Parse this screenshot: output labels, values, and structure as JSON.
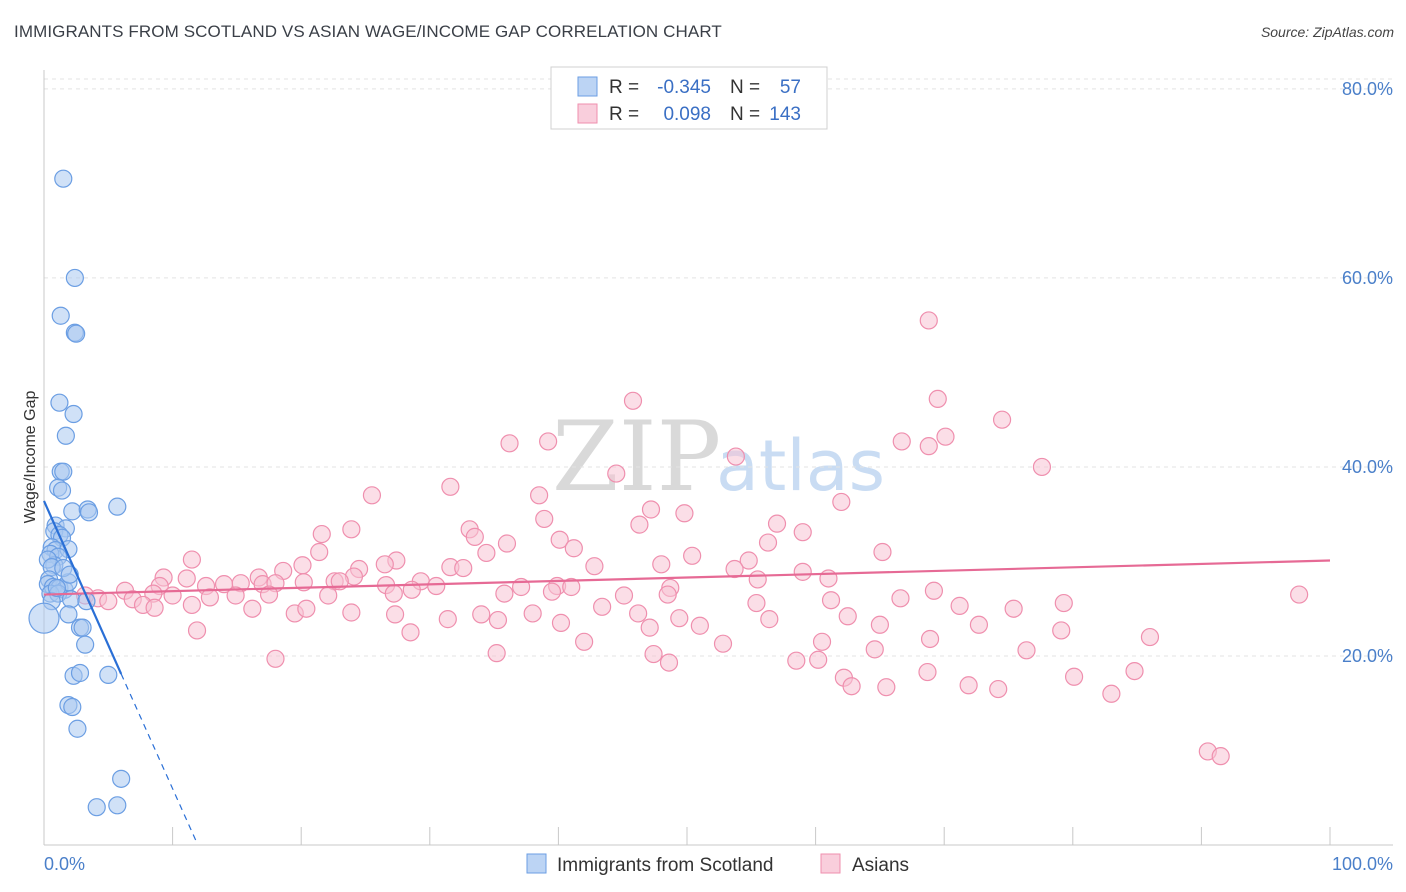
{
  "title": "IMMIGRANTS FROM SCOTLAND VS ASIAN WAGE/INCOME GAP CORRELATION CHART",
  "source": "Source: ZipAtlas.com",
  "watermark": {
    "zip": "ZIP",
    "atlas": "atlas"
  },
  "colors": {
    "blue": "#6b9ee3",
    "blue_fill": "#a9c8f0",
    "blue_line": "#2a6fd6",
    "pink": "#ef8fae",
    "pink_fill": "#f7c3d4",
    "pink_line": "#e66a95",
    "axis_text": "#4a7fc9"
  },
  "legend": {
    "row1": {
      "r_label": "R =",
      "r_value": "-0.345",
      "n_label": "N =",
      "n_value": "57"
    },
    "row2": {
      "r_label": "R =",
      "r_value": "0.098",
      "n_label": "N =",
      "n_value": "143"
    }
  },
  "bottom_legend": {
    "series1": "Immigrants from Scotland",
    "series2": "Asians"
  },
  "chart_data": {
    "type": "scatter",
    "title": "IMMIGRANTS FROM SCOTLAND VS ASIAN WAGE/INCOME GAP CORRELATION CHART",
    "xlabel": "",
    "ylabel": "Wage/Income Gap",
    "xlim": [
      0,
      100
    ],
    "ylim": [
      0,
      82
    ],
    "x_tick_labels": [
      "0.0%",
      "100.0%"
    ],
    "y_ticks": [
      20,
      40,
      60,
      80
    ],
    "y_tick_labels": [
      "20.0%",
      "40.0%",
      "60.0%",
      "80.0%"
    ],
    "grid": true,
    "series": [
      {
        "name": "Immigrants from Scotland",
        "R": -0.345,
        "N": 57,
        "trend": {
          "x0": 0,
          "y0": 36.4,
          "x1": 6.0,
          "y1": 18.1,
          "dashed_to_x": 11.8,
          "dashed_to_y": 0.5
        },
        "points": [
          [
            1.5,
            70.5
          ],
          [
            2.4,
            60
          ],
          [
            1.3,
            56
          ],
          [
            2.4,
            54.2
          ],
          [
            2.5,
            54.1
          ],
          [
            1.2,
            46.8
          ],
          [
            2.3,
            45.6
          ],
          [
            1.7,
            43.3
          ],
          [
            1.3,
            39.5
          ],
          [
            1.5,
            39.5
          ],
          [
            1.1,
            37.8
          ],
          [
            1.4,
            37.5
          ],
          [
            2.2,
            35.3
          ],
          [
            3.4,
            35.5
          ],
          [
            3.5,
            35.2
          ],
          [
            5.7,
            35.8
          ],
          [
            0.9,
            33.8
          ],
          [
            1.7,
            33.5
          ],
          [
            0.8,
            33.2
          ],
          [
            1.2,
            32.8
          ],
          [
            1.4,
            32.5
          ],
          [
            0.6,
            31.5
          ],
          [
            0.9,
            31.2
          ],
          [
            1.9,
            31.3
          ],
          [
            0.5,
            30.8
          ],
          [
            1.1,
            30.5
          ],
          [
            0.8,
            29.6
          ],
          [
            0.3,
            30.2
          ],
          [
            0.6,
            29.4
          ],
          [
            0.4,
            28.1
          ],
          [
            0.3,
            27.6
          ],
          [
            0.7,
            27.3
          ],
          [
            1.2,
            27.2
          ],
          [
            1.6,
            27.0
          ],
          [
            1.9,
            27.8
          ],
          [
            0.5,
            26.6
          ],
          [
            1.1,
            26.6
          ],
          [
            0.6,
            25.8
          ],
          [
            2.1,
            26.0
          ],
          [
            3.3,
            25.8
          ],
          [
            0.0,
            24.0
          ],
          [
            1.9,
            24.4
          ],
          [
            2.8,
            23.0
          ],
          [
            3.0,
            23.0
          ],
          [
            3.2,
            21.2
          ],
          [
            2.3,
            17.9
          ],
          [
            2.8,
            18.2
          ],
          [
            5.0,
            18.0
          ],
          [
            1.9,
            14.8
          ],
          [
            2.2,
            14.6
          ],
          [
            2.6,
            12.3
          ],
          [
            6.0,
            7.0
          ],
          [
            4.1,
            4.0
          ],
          [
            5.7,
            4.2
          ],
          [
            1.0,
            27.2
          ],
          [
            1.5,
            29.3
          ],
          [
            2.0,
            28.6
          ]
        ]
      },
      {
        "name": "Asians",
        "R": 0.098,
        "N": 143,
        "trend": {
          "x0": 0,
          "y0": 26.5,
          "x1": 100,
          "y1": 30.1
        },
        "points": [
          [
            68.8,
            55.5
          ],
          [
            45.8,
            47.0
          ],
          [
            69.5,
            47.2
          ],
          [
            74.5,
            45.0
          ],
          [
            36.2,
            42.5
          ],
          [
            39.2,
            42.7
          ],
          [
            66.7,
            42.7
          ],
          [
            70.1,
            43.2
          ],
          [
            68.8,
            42.2
          ],
          [
            53.8,
            41.1
          ],
          [
            77.6,
            40.0
          ],
          [
            44.5,
            39.3
          ],
          [
            31.6,
            37.9
          ],
          [
            38.5,
            37.0
          ],
          [
            25.5,
            37.0
          ],
          [
            62.0,
            36.3
          ],
          [
            47.2,
            35.5
          ],
          [
            49.8,
            35.1
          ],
          [
            38.9,
            34.5
          ],
          [
            57.0,
            34.0
          ],
          [
            46.3,
            33.9
          ],
          [
            23.9,
            33.4
          ],
          [
            33.1,
            33.4
          ],
          [
            59.0,
            33.1
          ],
          [
            21.6,
            32.9
          ],
          [
            33.5,
            32.6
          ],
          [
            40.1,
            32.3
          ],
          [
            56.3,
            32.0
          ],
          [
            36.0,
            31.9
          ],
          [
            41.2,
            31.4
          ],
          [
            21.4,
            31.0
          ],
          [
            34.4,
            30.9
          ],
          [
            50.4,
            30.6
          ],
          [
            65.2,
            31.0
          ],
          [
            11.5,
            30.2
          ],
          [
            27.4,
            30.1
          ],
          [
            20.1,
            29.6
          ],
          [
            26.5,
            29.7
          ],
          [
            48.0,
            29.7
          ],
          [
            54.8,
            30.1
          ],
          [
            18.6,
            29.0
          ],
          [
            31.6,
            29.4
          ],
          [
            24.5,
            29.2
          ],
          [
            32.6,
            29.3
          ],
          [
            42.8,
            29.5
          ],
          [
            53.7,
            29.2
          ],
          [
            59.0,
            28.9
          ],
          [
            9.3,
            28.3
          ],
          [
            11.1,
            28.2
          ],
          [
            16.7,
            28.3
          ],
          [
            22.6,
            27.9
          ],
          [
            24.1,
            28.4
          ],
          [
            26.6,
            27.5
          ],
          [
            29.3,
            27.9
          ],
          [
            39.9,
            27.4
          ],
          [
            55.5,
            28.1
          ],
          [
            61.0,
            28.2
          ],
          [
            9.0,
            27.4
          ],
          [
            12.6,
            27.4
          ],
          [
            14.0,
            27.6
          ],
          [
            15.3,
            27.7
          ],
          [
            17.0,
            27.6
          ],
          [
            18.0,
            27.7
          ],
          [
            20.2,
            27.8
          ],
          [
            23.0,
            27.9
          ],
          [
            30.5,
            27.4
          ],
          [
            37.1,
            27.3
          ],
          [
            41.0,
            27.3
          ],
          [
            48.7,
            27.2
          ],
          [
            69.2,
            26.9
          ],
          [
            6.3,
            26.9
          ],
          [
            8.5,
            26.6
          ],
          [
            10.0,
            26.4
          ],
          [
            12.9,
            26.2
          ],
          [
            14.9,
            26.4
          ],
          [
            17.5,
            26.5
          ],
          [
            22.1,
            26.4
          ],
          [
            27.2,
            26.6
          ],
          [
            28.6,
            27.0
          ],
          [
            35.8,
            26.6
          ],
          [
            39.5,
            26.8
          ],
          [
            45.1,
            26.4
          ],
          [
            48.5,
            26.5
          ],
          [
            6.9,
            26.0
          ],
          [
            3.2,
            26.4
          ],
          [
            4.2,
            26.1
          ],
          [
            5.0,
            25.8
          ],
          [
            7.7,
            25.4
          ],
          [
            8.6,
            25.1
          ],
          [
            11.5,
            25.4
          ],
          [
            16.2,
            25.0
          ],
          [
            19.5,
            24.5
          ],
          [
            20.4,
            25.0
          ],
          [
            23.9,
            24.6
          ],
          [
            27.3,
            24.4
          ],
          [
            34.0,
            24.4
          ],
          [
            38.0,
            24.5
          ],
          [
            43.4,
            25.2
          ],
          [
            46.2,
            24.5
          ],
          [
            49.4,
            24.0
          ],
          [
            55.4,
            25.6
          ],
          [
            61.2,
            25.9
          ],
          [
            66.6,
            26.1
          ],
          [
            71.2,
            25.3
          ],
          [
            75.4,
            25.0
          ],
          [
            79.3,
            25.6
          ],
          [
            97.6,
            26.5
          ],
          [
            31.4,
            23.9
          ],
          [
            35.3,
            23.8
          ],
          [
            40.2,
            23.5
          ],
          [
            47.1,
            23.0
          ],
          [
            51.0,
            23.2
          ],
          [
            56.4,
            23.9
          ],
          [
            62.5,
            24.2
          ],
          [
            65.0,
            23.3
          ],
          [
            72.7,
            23.3
          ],
          [
            79.1,
            22.7
          ],
          [
            11.9,
            22.7
          ],
          [
            28.5,
            22.5
          ],
          [
            42.0,
            21.5
          ],
          [
            52.8,
            21.3
          ],
          [
            60.5,
            21.5
          ],
          [
            68.9,
            21.8
          ],
          [
            86.0,
            22.0
          ],
          [
            35.2,
            20.3
          ],
          [
            47.4,
            20.2
          ],
          [
            64.6,
            20.7
          ],
          [
            76.4,
            20.6
          ],
          [
            18.0,
            19.7
          ],
          [
            48.6,
            19.3
          ],
          [
            60.2,
            19.6
          ],
          [
            68.7,
            18.3
          ],
          [
            80.1,
            17.8
          ],
          [
            62.2,
            17.7
          ],
          [
            62.8,
            16.8
          ],
          [
            65.5,
            16.7
          ],
          [
            74.2,
            16.5
          ],
          [
            84.8,
            18.4
          ],
          [
            90.5,
            9.9
          ],
          [
            91.5,
            9.4
          ],
          [
            71.9,
            16.9
          ],
          [
            58.5,
            19.5
          ],
          [
            83.0,
            16.0
          ]
        ]
      }
    ]
  }
}
